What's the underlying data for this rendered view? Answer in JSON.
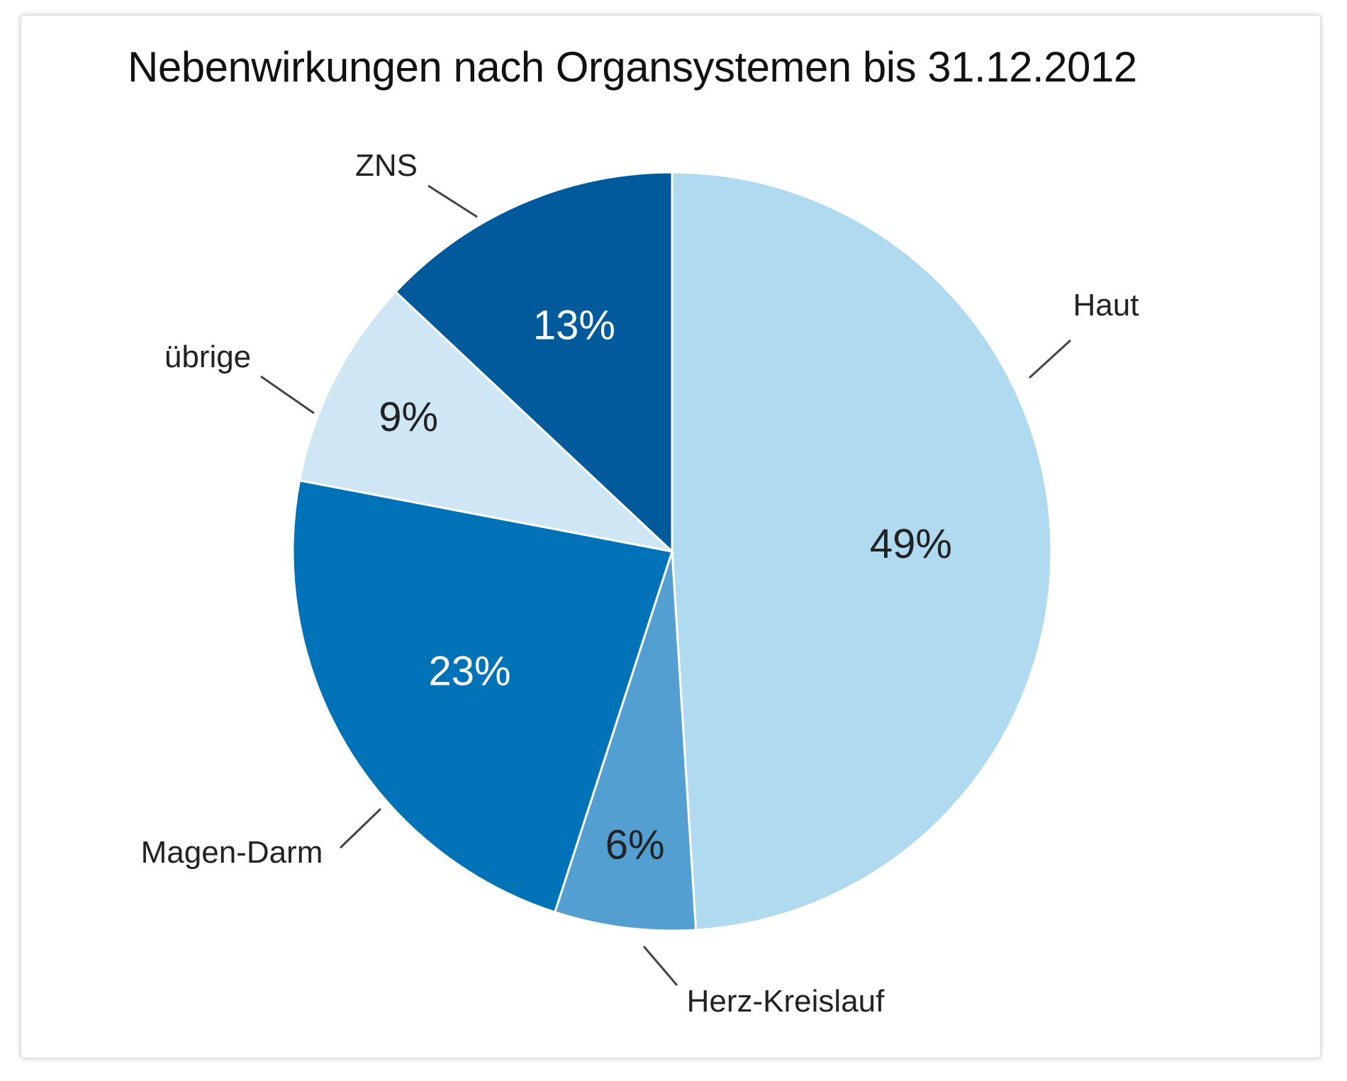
{
  "chart_data": {
    "type": "pie",
    "title": "Nebenwirkungen nach Organsystemen bis 31.12.2012",
    "slices": [
      {
        "label": "Haut",
        "value": 49,
        "value_label": "49%",
        "color": "#b0daf0",
        "text_color": "#222222"
      },
      {
        "label": "Herz-Kreislauf",
        "value": 6,
        "value_label": "6%",
        "color": "#539fd1",
        "text_color": "#222222"
      },
      {
        "label": "Magen-Darm",
        "value": 23,
        "value_label": "23%",
        "color": "#0072b8",
        "text_color": "#ffffff"
      },
      {
        "label": "übrige",
        "value": 9,
        "value_label": "9%",
        "color": "#cfe6f5",
        "text_color": "#222222"
      },
      {
        "label": "ZNS",
        "value": 13,
        "value_label": "13%",
        "color": "#005a9c",
        "text_color": "#ffffff"
      }
    ]
  }
}
